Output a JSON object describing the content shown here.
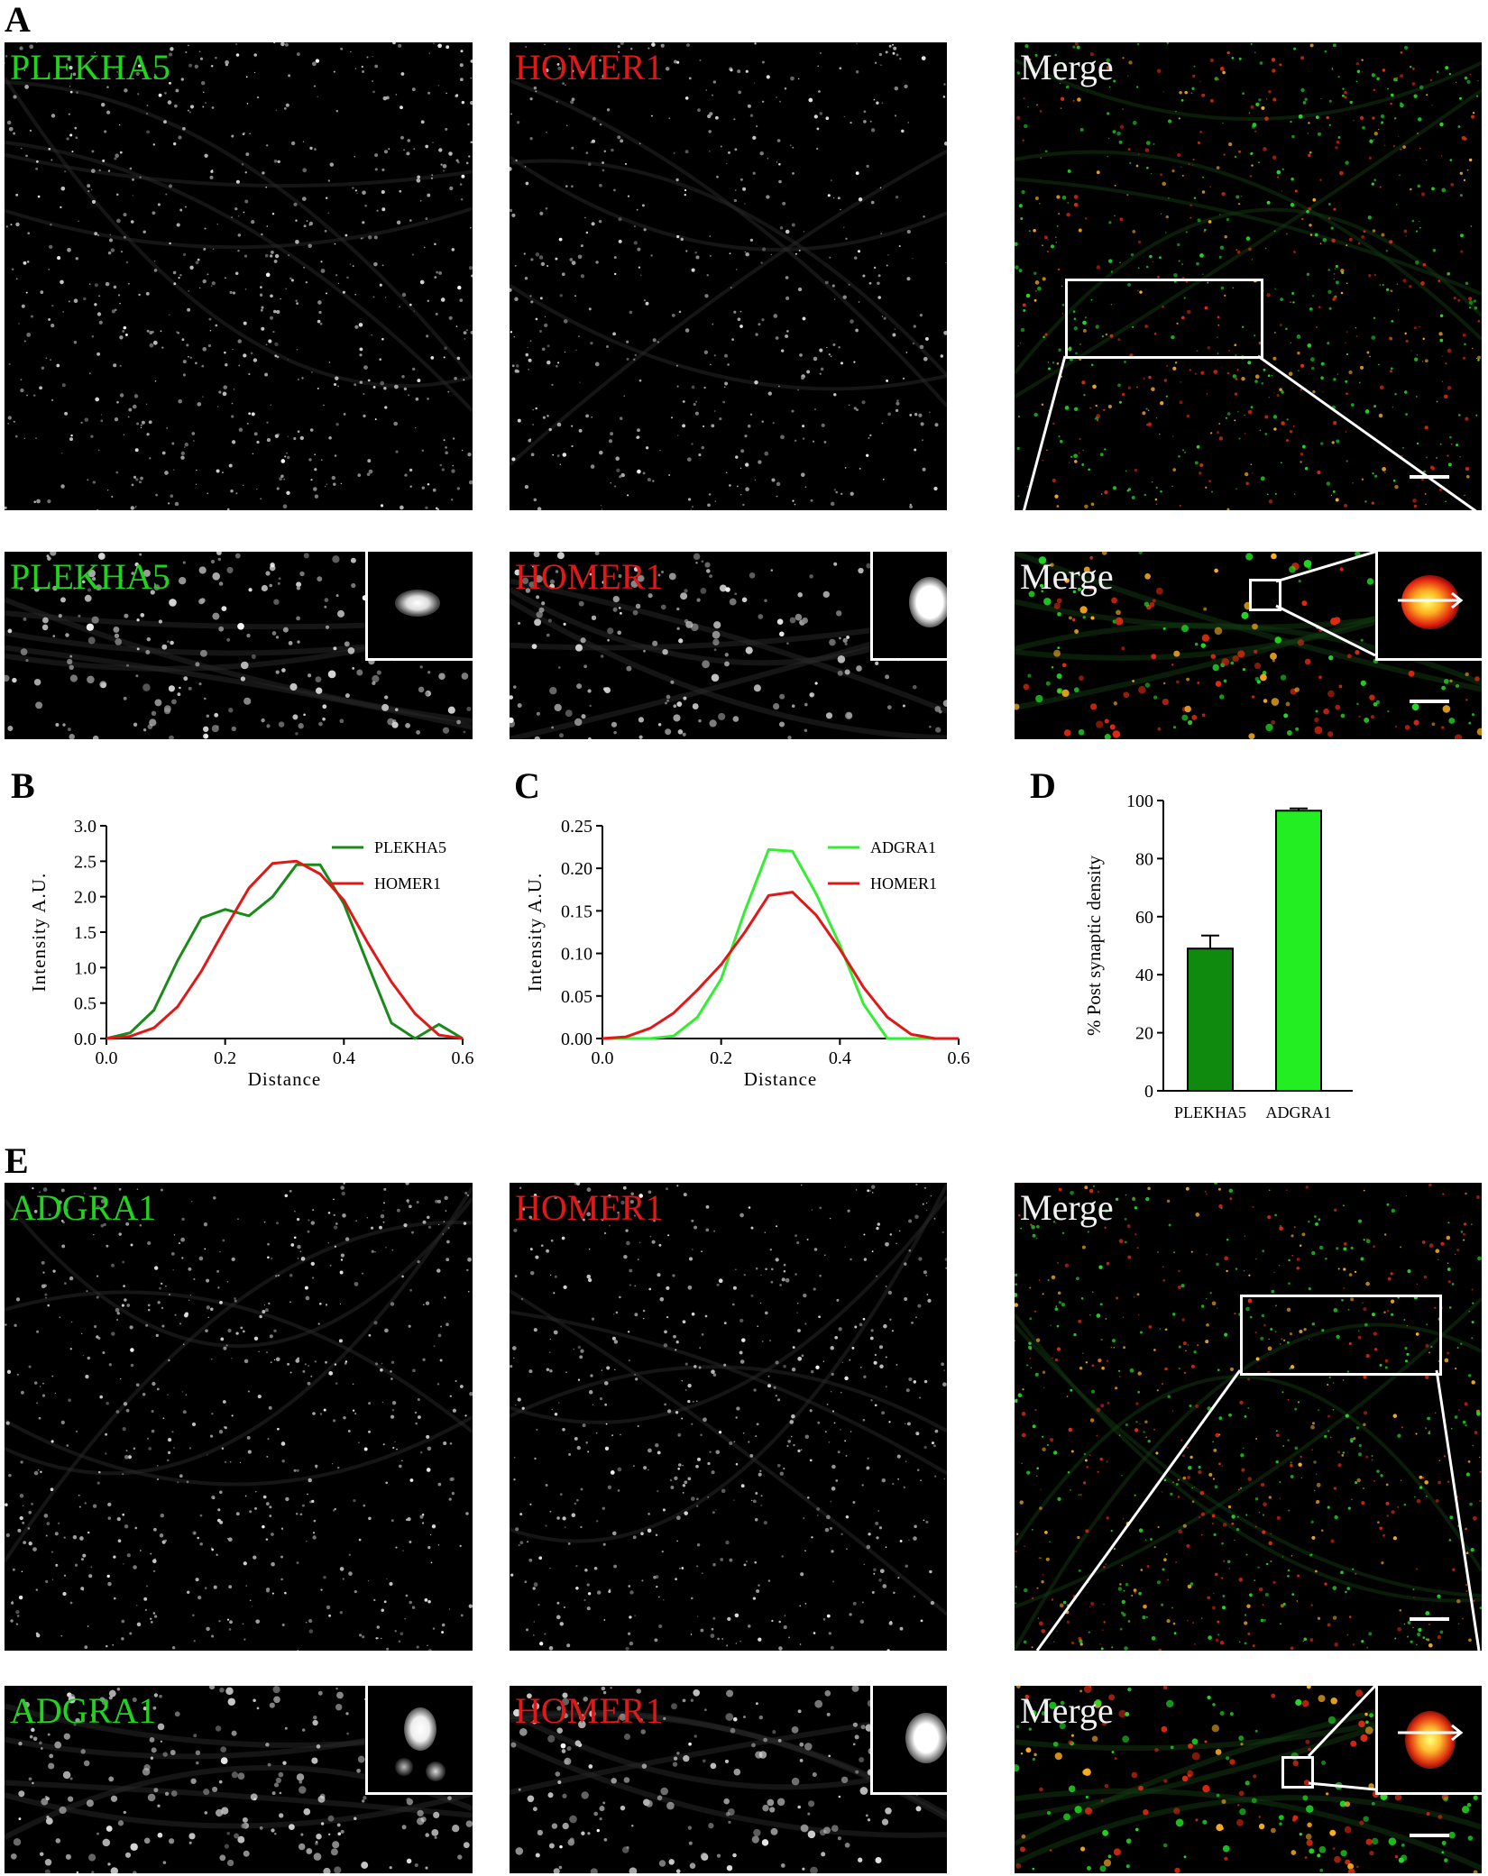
{
  "panel_letters": {
    "a": "A",
    "b": "B",
    "c": "C",
    "d": "D",
    "e": "E"
  },
  "panel_a": {
    "row1": {
      "plekha5": "PLEKHA5",
      "homer1": "HOMER1",
      "merge": "Merge"
    },
    "row2": {
      "plekha5": "PLEKHA5",
      "homer1": "HOMER1",
      "merge": "Merge"
    }
  },
  "panel_e": {
    "row1": {
      "adgra1": "ADGRA1",
      "homer1": "HOMER1",
      "merge": "Merge"
    },
    "row2": {
      "adgra1": "ADGRA1",
      "homer1": "HOMER1",
      "merge": "Merge"
    }
  },
  "colors": {
    "green_label": "#1fd31f",
    "red_label": "#e01818",
    "plekha5_line": "#1a8a1a",
    "homer1_line": "#e01818",
    "adgra1_line": "#33ee33",
    "plekha5_bar": "#0f8a0f",
    "adgra1_bar": "#22ee22"
  },
  "chart_data": [
    {
      "type": "line",
      "panel": "B",
      "xlabel": "Distance",
      "ylabel": "Intensity A.U.",
      "xlim": [
        0,
        0.6
      ],
      "ylim": [
        0,
        3.0
      ],
      "xticks": [
        "0.0",
        "0.2",
        "0.4",
        "0.6"
      ],
      "yticks": [
        "0.0",
        "0.5",
        "1.0",
        "1.5",
        "2.0",
        "2.5",
        "3.0"
      ],
      "legend": "top-right",
      "series": [
        {
          "name": "PLEKHA5",
          "x": [
            0,
            0.04,
            0.08,
            0.12,
            0.16,
            0.2,
            0.24,
            0.28,
            0.32,
            0.36,
            0.4,
            0.44,
            0.48,
            0.52,
            0.56,
            0.6
          ],
          "values": [
            0,
            0.08,
            0.4,
            1.1,
            1.7,
            1.82,
            1.73,
            2.0,
            2.45,
            2.45,
            1.9,
            1.05,
            0.22,
            0,
            0.2,
            0
          ]
        },
        {
          "name": "HOMER1",
          "x": [
            0,
            0.04,
            0.08,
            0.12,
            0.16,
            0.2,
            0.24,
            0.28,
            0.32,
            0.36,
            0.4,
            0.44,
            0.48,
            0.52,
            0.56,
            0.6
          ],
          "values": [
            0,
            0.03,
            0.15,
            0.45,
            0.95,
            1.55,
            2.12,
            2.47,
            2.5,
            2.32,
            1.95,
            1.35,
            0.8,
            0.35,
            0.05,
            0
          ]
        }
      ]
    },
    {
      "type": "line",
      "panel": "C",
      "xlabel": "Distance",
      "ylabel": "Intensity A.U.",
      "xlim": [
        0,
        0.6
      ],
      "ylim": [
        0,
        0.25
      ],
      "xticks": [
        "0.0",
        "0.2",
        "0.4",
        "0.6"
      ],
      "yticks": [
        "0.00",
        "0.05",
        "0.10",
        "0.15",
        "0.20",
        "0.25"
      ],
      "legend": "top-right",
      "series": [
        {
          "name": "ADGRA1",
          "x": [
            0,
            0.04,
            0.08,
            0.12,
            0.16,
            0.2,
            0.24,
            0.28,
            0.32,
            0.36,
            0.4,
            0.44,
            0.48,
            0.52,
            0.56,
            0.6
          ],
          "values": [
            0,
            0,
            0,
            0.003,
            0.025,
            0.07,
            0.15,
            0.222,
            0.22,
            0.17,
            0.11,
            0.04,
            0,
            0,
            0,
            0
          ]
        },
        {
          "name": "HOMER1",
          "x": [
            0,
            0.04,
            0.08,
            0.12,
            0.16,
            0.2,
            0.24,
            0.28,
            0.32,
            0.36,
            0.4,
            0.44,
            0.48,
            0.52,
            0.56,
            0.6
          ],
          "values": [
            0,
            0.002,
            0.012,
            0.03,
            0.057,
            0.087,
            0.125,
            0.168,
            0.172,
            0.145,
            0.105,
            0.06,
            0.025,
            0.005,
            0,
            0
          ]
        }
      ]
    },
    {
      "type": "bar",
      "panel": "D",
      "ylabel": "% Post synaptic density",
      "ylim": [
        0,
        100
      ],
      "yticks": [
        "0",
        "20",
        "40",
        "60",
        "80",
        "100"
      ],
      "categories": [
        "PLEKHA5",
        "ADGRA1"
      ],
      "values": [
        49,
        96.5
      ],
      "errors": [
        4.5,
        0.8
      ]
    }
  ]
}
